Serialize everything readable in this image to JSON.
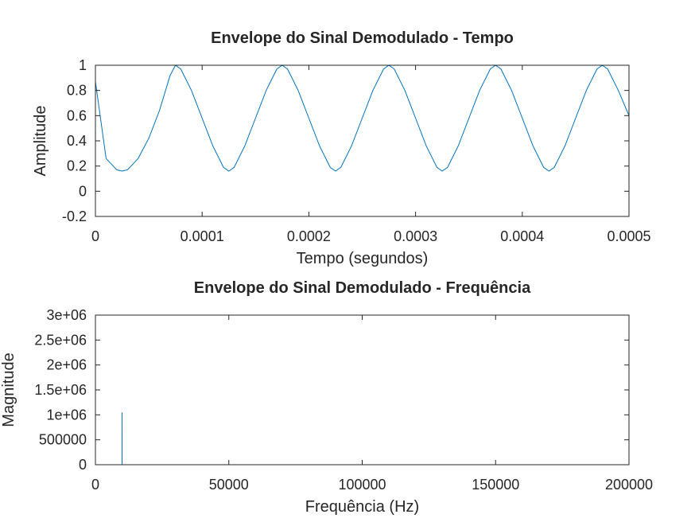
{
  "colors": {
    "series": "#0072bd",
    "axes": "#262626",
    "background": "#ffffff"
  },
  "chart_data": [
    {
      "type": "line",
      "title": "Envelope do Sinal Demodulado - Tempo",
      "xlabel": "Tempo (segundos)",
      "ylabel": "Amplitude",
      "xlim": [
        0,
        0.0005
      ],
      "ylim": [
        -0.2,
        1
      ],
      "xticks": [
        0,
        0.0001,
        0.0002,
        0.0003,
        0.0004,
        0.0005
      ],
      "xtick_labels": [
        "0",
        "0.0001",
        "0.0002",
        "0.0003",
        "0.0004",
        "0.0005"
      ],
      "yticks": [
        -0.2,
        0,
        0.2,
        0.4,
        0.6,
        0.8,
        1
      ],
      "ytick_labels": [
        "-0.2",
        "0",
        "0.2",
        "0.4",
        "0.6",
        "0.8",
        "1"
      ],
      "grid": false,
      "series": [
        {
          "x": [
            0,
            1e-05,
            2e-05,
            2.5e-05,
            3e-05,
            4e-05,
            5e-05,
            6e-05,
            7e-05,
            7.5e-05,
            8e-05,
            9e-05,
            0.0001,
            0.00011,
            0.00012,
            0.000125,
            0.00013,
            0.00014,
            0.00015,
            0.00016,
            0.00017,
            0.000175,
            0.00018,
            0.00019,
            0.0002,
            0.00021,
            0.00022,
            0.000225,
            0.00023,
            0.00024,
            0.00025,
            0.00026,
            0.00027,
            0.000275,
            0.00028,
            0.00029,
            0.0003,
            0.00031,
            0.00032,
            0.000325,
            0.00033,
            0.00034,
            0.00035,
            0.00036,
            0.00037,
            0.000375,
            0.00038,
            0.00039,
            0.0004,
            0.00041,
            0.00042,
            0.000425,
            0.00043,
            0.00044,
            0.00045,
            0.00046,
            0.00047,
            0.000475,
            0.00048,
            0.00049,
            0.0005
          ],
          "y": [
            0.87,
            0.26,
            0.17,
            0.16,
            0.17,
            0.26,
            0.42,
            0.64,
            0.92,
            1.0,
            0.97,
            0.8,
            0.58,
            0.36,
            0.19,
            0.16,
            0.19,
            0.36,
            0.58,
            0.8,
            0.97,
            1.0,
            0.97,
            0.8,
            0.58,
            0.36,
            0.19,
            0.16,
            0.19,
            0.36,
            0.58,
            0.8,
            0.97,
            1.0,
            0.97,
            0.8,
            0.58,
            0.36,
            0.19,
            0.16,
            0.19,
            0.36,
            0.58,
            0.8,
            0.97,
            1.0,
            0.97,
            0.8,
            0.58,
            0.36,
            0.19,
            0.16,
            0.19,
            0.36,
            0.58,
            0.8,
            0.97,
            1.0,
            0.97,
            0.8,
            0.6
          ]
        }
      ]
    },
    {
      "type": "line",
      "title": "Envelope do Sinal Demodulado - Frequência",
      "xlabel": "Frequência (Hz)",
      "ylabel": "Magnitude",
      "xlim": [
        0,
        200000
      ],
      "ylim": [
        0,
        3000000
      ],
      "xticks": [
        0,
        50000,
        100000,
        150000,
        200000
      ],
      "xtick_labels": [
        "0",
        "50000",
        "100000",
        "150000",
        "200000"
      ],
      "yticks": [
        0,
        500000,
        1000000,
        1500000,
        2000000,
        2500000,
        3000000
      ],
      "ytick_labels": [
        "0",
        "500000",
        "1e+06",
        "1.5e+06",
        "2e+06",
        "2.5e+06",
        "3e+06"
      ],
      "grid": false,
      "series": [
        {
          "x": [
            0,
            0,
            0,
            9990,
            10000,
            10010,
            200000
          ],
          "y": [
            3000000,
            3000000,
            0,
            0,
            1050000,
            0,
            0
          ]
        }
      ]
    }
  ]
}
